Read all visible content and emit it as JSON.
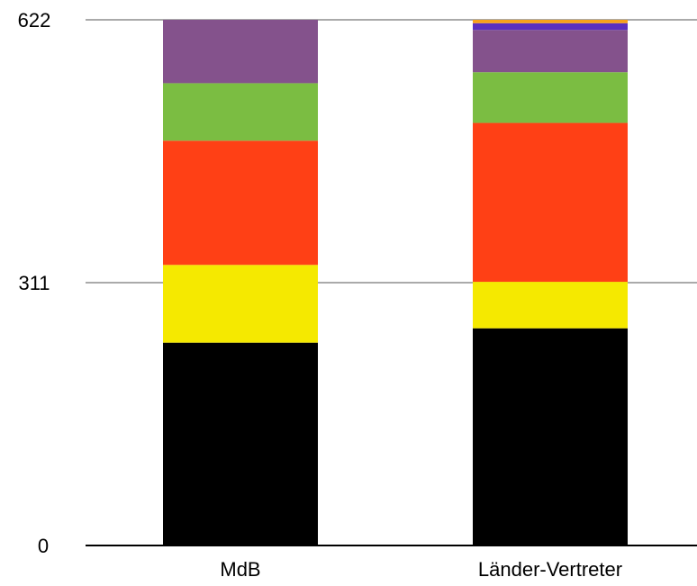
{
  "chart_data": {
    "type": "bar",
    "stacked": true,
    "categories": [
      "MdB",
      "Länder-Vertreter"
    ],
    "ylim": [
      0,
      622
    ],
    "yticks": [
      "0",
      "311",
      "622"
    ],
    "grid": true,
    "series": [
      {
        "color": "#000000",
        "values": [
          240,
          257
        ]
      },
      {
        "color": "#f5e900",
        "values": [
          92,
          55
        ]
      },
      {
        "color": "#ff4015",
        "values": [
          147,
          188
        ]
      },
      {
        "color": "#7bbd42",
        "values": [
          68,
          60
        ]
      },
      {
        "color": "#84528c",
        "values": [
          75,
          50
        ]
      },
      {
        "color": "#5a2fbf",
        "values": [
          0,
          8
        ]
      },
      {
        "color": "#f7a11a",
        "values": [
          0,
          4
        ]
      }
    ],
    "xlabel": "",
    "ylabel": "",
    "title": ""
  }
}
